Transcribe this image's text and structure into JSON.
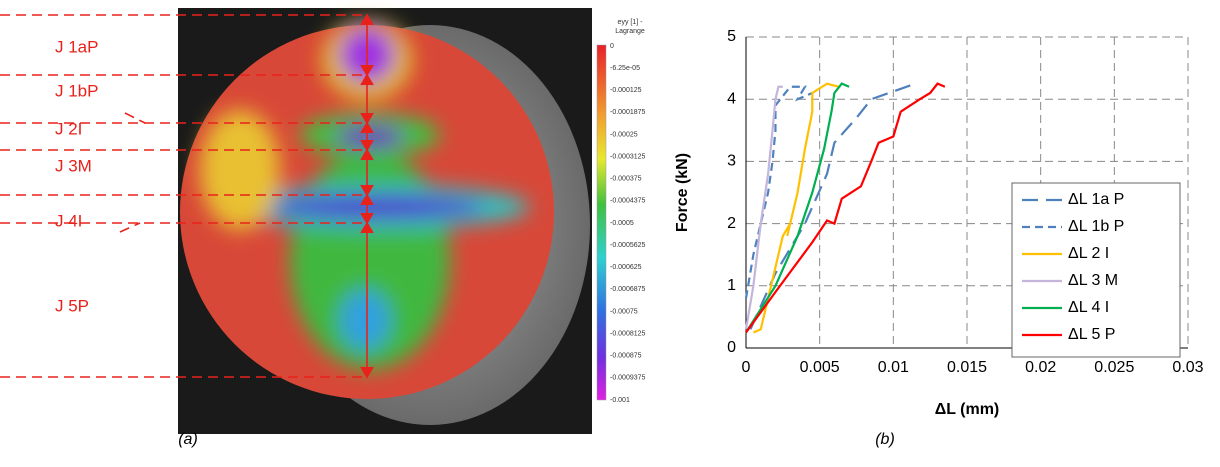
{
  "panel_a": {
    "labels": [
      "J 1aP",
      "J 1bP",
      "J 2I",
      "J 3M",
      "J 4I",
      "J 5P"
    ],
    "colorbar": {
      "title": [
        "eyy [1] -",
        "Lagrange"
      ],
      "ticks": [
        "0",
        "-6.25e-05",
        "-0.000125",
        "-0.0001875",
        "-0.00025",
        "-0.0003125",
        "-0.000375",
        "-0.0004375",
        "-0.0005",
        "-0.0005625",
        "-0.000625",
        "-0.0006875",
        "-0.00075",
        "-0.0008125",
        "-0.000875",
        "-0.0009375",
        "-0.001"
      ]
    }
  },
  "chart_data": {
    "type": "line",
    "xlabel": "ΔL (mm)",
    "ylabel": "Force (kN)",
    "xlim": [
      0,
      0.03
    ],
    "xticks": [
      0,
      0.005,
      0.01,
      0.015,
      0.02,
      0.025,
      0.03
    ],
    "ylim": [
      0,
      5
    ],
    "yticks": [
      0,
      1,
      2,
      3,
      4,
      5
    ],
    "grid": true,
    "legend": "lower right",
    "series": [
      {
        "name": "ΔL 1a P",
        "color": "#4f81bd",
        "dash": "long",
        "x": [
          0.0003,
          0.002,
          0.004,
          0.0055,
          0.006,
          0.0075,
          0.0085,
          0.0115
        ],
        "values": [
          0.3,
          1.2,
          2.0,
          2.8,
          3.3,
          3.7,
          4.0,
          4.25
        ]
      },
      {
        "name": "ΔL 1b P",
        "color": "#4f81bd",
        "dash": "short",
        "x": [
          0,
          0.0005,
          0.001,
          0.0015,
          0.0018,
          0.002,
          0.002,
          0.003,
          0.004,
          0.0035,
          0.0045
        ],
        "values": [
          0.8,
          1.5,
          2.0,
          2.5,
          3.0,
          3.5,
          3.9,
          4.2,
          4.2,
          4.0,
          4.1
        ]
      },
      {
        "name": "ΔL 2 I",
        "color": "#ffc000",
        "dash": "solid",
        "x": [
          0.0005,
          0.001,
          0.0025,
          0.003,
          0.0028,
          0.0035,
          0.004,
          0.0045,
          0.0045,
          0.0055,
          0.0063
        ],
        "values": [
          0.25,
          0.3,
          1.8,
          2.0,
          1.8,
          2.5,
          3.2,
          3.8,
          4.1,
          4.25,
          4.2
        ]
      },
      {
        "name": "ΔL 3 M",
        "color": "#c3b5dc",
        "dash": "solid",
        "x": [
          0,
          0.0005,
          0.001,
          0.0015,
          0.0018,
          0.002,
          0.0022,
          0.0025
        ],
        "values": [
          0.3,
          1.0,
          2.0,
          2.8,
          3.5,
          4.0,
          4.2,
          4.2
        ]
      },
      {
        "name": "ΔL 4 I",
        "color": "#00b050",
        "dash": "solid",
        "x": [
          0,
          0.002,
          0.0035,
          0.0045,
          0.0053,
          0.0058,
          0.006,
          0.0065,
          0.007
        ],
        "values": [
          0.25,
          1.0,
          1.8,
          2.5,
          3.2,
          3.8,
          4.1,
          4.25,
          4.2
        ]
      },
      {
        "name": "ΔL 5 P",
        "color": "#ff0000",
        "dash": "solid",
        "x": [
          0,
          0.002,
          0.0045,
          0.0055,
          0.006,
          0.0065,
          0.0078,
          0.0085,
          0.009,
          0.01,
          0.0105,
          0.0118,
          0.0125,
          0.013,
          0.0135
        ],
        "values": [
          0.25,
          0.9,
          1.7,
          2.05,
          2.0,
          2.4,
          2.6,
          3.0,
          3.3,
          3.4,
          3.8,
          4.0,
          4.1,
          4.25,
          4.2
        ]
      }
    ]
  },
  "captions": {
    "a": "(a)",
    "b": "(b)"
  }
}
